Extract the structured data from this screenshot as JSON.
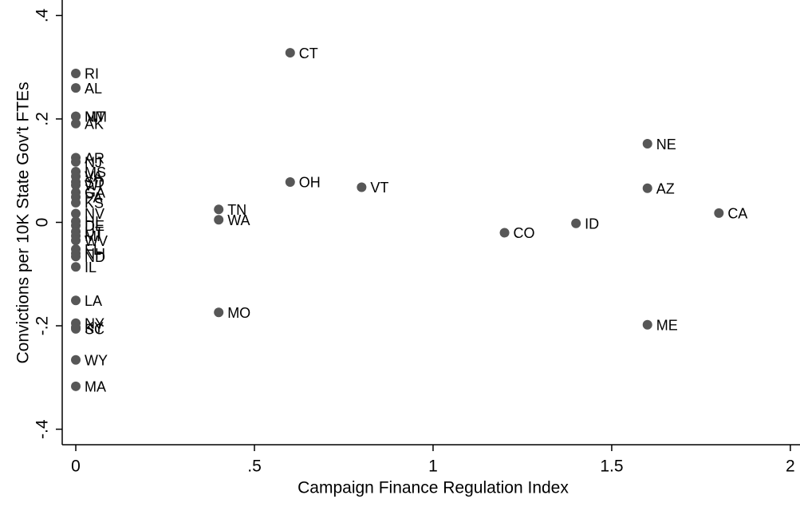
{
  "chart_data": {
    "type": "scatter",
    "x_label": "Campaign Finance Regulation Index",
    "y_label": "Convictions per 10K State Gov't FTEs",
    "color": "#575757",
    "xlim": [
      -0.038,
      2.027
    ],
    "ylim": [
      -0.43,
      0.43
    ],
    "xticks": [
      0,
      {
        "value": 0.5,
        "label": ".5"
      },
      1,
      1.5,
      2
    ],
    "yticks": [
      {
        "value": -0.4,
        "label": "-.4"
      },
      {
        "value": -0.2,
        "label": "-.2"
      },
      0,
      {
        "value": 0.2,
        "label": ".2"
      },
      {
        "value": 0.4,
        "label": ".4"
      }
    ],
    "labels": [
      "CT",
      "RI",
      "AL",
      "NM",
      "MT",
      "AK",
      "NE",
      "AR",
      "NJ",
      "MS",
      "VA",
      "SD",
      "WI",
      "GA",
      "PA",
      "OH",
      "VT",
      "AZ",
      "TN",
      "WA",
      "CA",
      "CO",
      "ID",
      "KS",
      "NV",
      "HI",
      "DE",
      "UT",
      "MI",
      "WV",
      "FL",
      "NH",
      "ND",
      "IL",
      "LA",
      "NY",
      "KY",
      "SC",
      "WY",
      "MA",
      "MO",
      "ME"
    ],
    "x": [
      0.6,
      0,
      0,
      0,
      0,
      0,
      1.6,
      0,
      0,
      0,
      0,
      0,
      0,
      0,
      0,
      0.6,
      0.8,
      1.6,
      0.4,
      0.4,
      1.8,
      1.2,
      1.4,
      0,
      0,
      0,
      0,
      0,
      0,
      0,
      0,
      0,
      0,
      0,
      0,
      0,
      0,
      0,
      0,
      0,
      0.4,
      1.6
    ],
    "values": [
      0.328,
      0.288,
      0.26,
      0.205,
      0.205,
      0.191,
      0.152,
      0.125,
      0.117,
      0.098,
      0.089,
      0.078,
      0.072,
      0.058,
      0.049,
      0.078,
      0.068,
      0.066,
      0.025,
      0.005,
      0.018,
      -0.02,
      -0.002,
      0.038,
      0.017,
      0.002,
      -0.006,
      -0.018,
      -0.026,
      -0.035,
      -0.052,
      -0.06,
      -0.066,
      -0.086,
      -0.151,
      -0.195,
      -0.203,
      -0.206,
      -0.266,
      -0.317,
      -0.174,
      -0.198
    ]
  }
}
